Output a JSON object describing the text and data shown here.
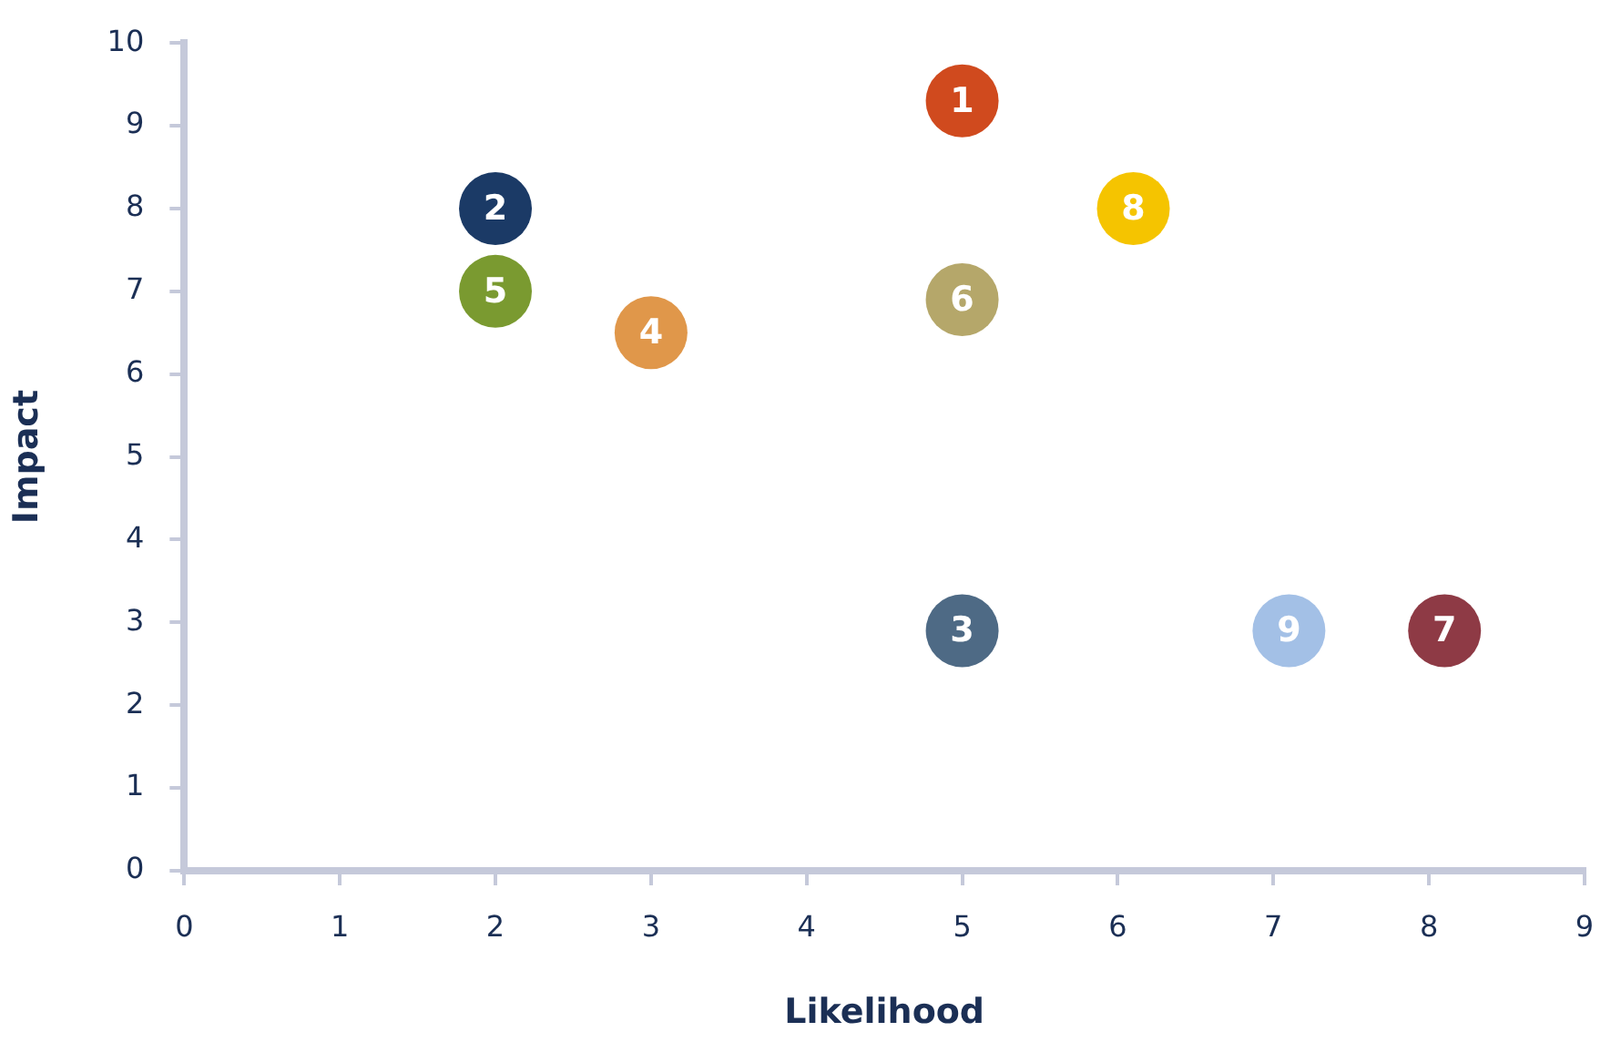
{
  "chart_data": {
    "type": "scatter",
    "xlabel": "Likelihood",
    "ylabel": "Impact",
    "xlim": [
      0,
      9
    ],
    "xticks": [
      0,
      1,
      2,
      3,
      4,
      5,
      6,
      7,
      8,
      9
    ],
    "ylim": [
      0,
      10
    ],
    "yticks": [
      0,
      1,
      2,
      3,
      4,
      5,
      6,
      7,
      8,
      9,
      10
    ],
    "grid": false,
    "legend": false,
    "marker": "circle",
    "series": [
      {
        "name": "1",
        "color": "#d04a1e",
        "x": [
          5
        ],
        "values": [
          9.3
        ]
      },
      {
        "name": "2",
        "color": "#1b3a66",
        "x": [
          2
        ],
        "values": [
          8
        ]
      },
      {
        "name": "3",
        "color": "#4e6a85",
        "x": [
          5
        ],
        "values": [
          2.9
        ]
      },
      {
        "name": "4",
        "color": "#e0974a",
        "x": [
          3
        ],
        "values": [
          6.5
        ]
      },
      {
        "name": "5",
        "color": "#7a9a30",
        "x": [
          2
        ],
        "values": [
          7
        ]
      },
      {
        "name": "6",
        "color": "#b5a76a",
        "x": [
          5
        ],
        "values": [
          6.9
        ]
      },
      {
        "name": "7",
        "color": "#8e3a45",
        "x": [
          8.1
        ],
        "values": [
          2.9
        ]
      },
      {
        "name": "8",
        "color": "#f5c400",
        "x": [
          6.1
        ],
        "values": [
          8
        ]
      },
      {
        "name": "9",
        "color": "#a3c0e6",
        "x": [
          7.1
        ],
        "values": [
          2.9
        ]
      }
    ]
  }
}
